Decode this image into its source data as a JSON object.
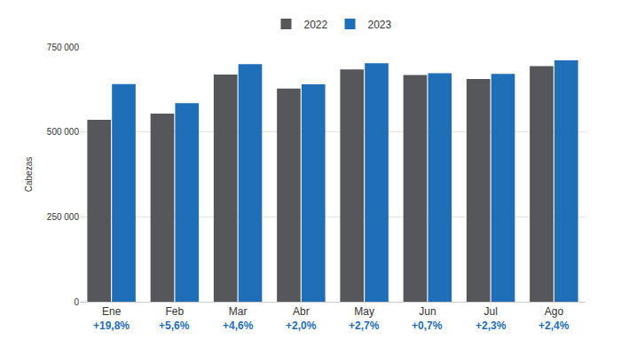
{
  "chart_data": {
    "type": "bar",
    "y_label": "Cabezas",
    "categories": [
      "Ene",
      "Feb",
      "Mar",
      "Abr",
      "May",
      "Jun",
      "Jul",
      "Ago"
    ],
    "series": [
      {
        "name": "2022",
        "color": "#55575b",
        "values": [
          536000,
          554000,
          669000,
          628000,
          684000,
          668000,
          656000,
          694000
        ]
      },
      {
        "name": "2023",
        "color": "#1f6fb8",
        "values": [
          641000,
          585000,
          700000,
          640000,
          702000,
          673000,
          671000,
          711000
        ]
      }
    ],
    "annotations": [
      "+19,8%",
      "+5,6%",
      "+4,6%",
      "+2,0%",
      "+2,7%",
      "+0,7%",
      "+2,3%",
      "+2,4%"
    ],
    "ylim": [
      0,
      750000
    ],
    "yticks": [
      0,
      {
        "value": 250000,
        "label": "250 000"
      },
      {
        "value": 500000,
        "label": "500 000"
      },
      {
        "value": 750000,
        "label": "750 000"
      }
    ],
    "grid": true,
    "legend": "top"
  }
}
